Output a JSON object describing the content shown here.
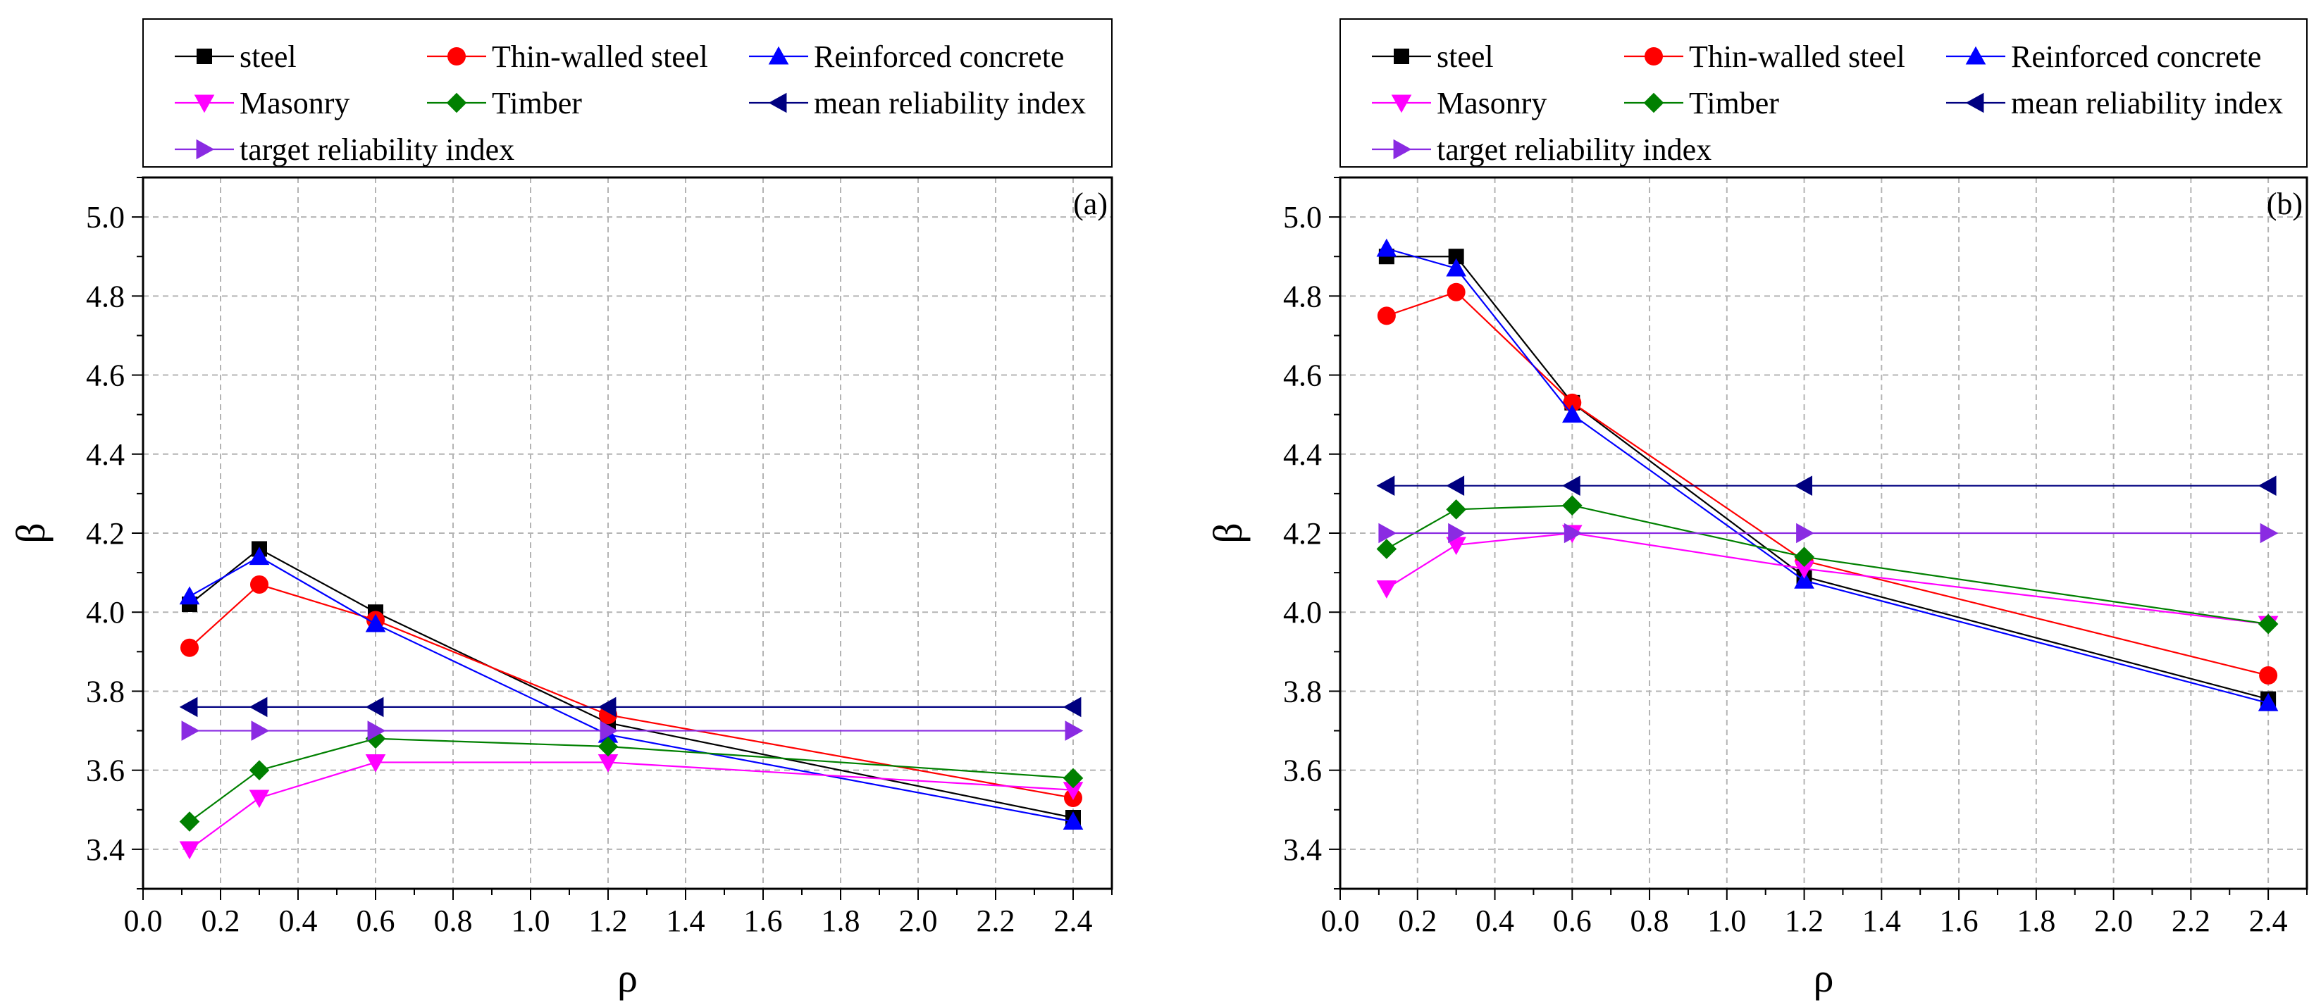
{
  "chart_data": [
    {
      "type": "line",
      "panel_label": "(a)",
      "xlabel": "ρ",
      "ylabel": "β",
      "xlim": [
        0.0,
        2.5
      ],
      "ylim": [
        3.3,
        5.1
      ],
      "xticks": [
        "0.0",
        "0.2",
        "0.4",
        "0.6",
        "0.8",
        "1.0",
        "1.2",
        "1.4",
        "1.6",
        "1.8",
        "2.0",
        "2.2",
        "2.4"
      ],
      "yticks": [
        "3.4",
        "3.6",
        "3.8",
        "4.0",
        "4.2",
        "4.4",
        "4.6",
        "4.8",
        "5.0"
      ],
      "grid": true,
      "legend_position": "top",
      "x": [
        0.12,
        0.3,
        0.6,
        1.2,
        2.4
      ],
      "series": [
        {
          "name": "steel",
          "color": "#000000",
          "marker": "square",
          "values": [
            4.02,
            4.16,
            4.0,
            3.72,
            3.48
          ]
        },
        {
          "name": "Thin-walled steel",
          "color": "#ff0000",
          "marker": "circle",
          "values": [
            3.91,
            4.07,
            3.98,
            3.74,
            3.53
          ]
        },
        {
          "name": "Reinforced concrete",
          "color": "#0000ff",
          "marker": "triangle-up",
          "values": [
            4.04,
            4.14,
            3.97,
            3.69,
            3.47
          ]
        },
        {
          "name": "Masonry",
          "color": "#ff00ff",
          "marker": "triangle-down",
          "values": [
            3.4,
            3.53,
            3.62,
            3.62,
            3.55
          ]
        },
        {
          "name": "Timber",
          "color": "#008000",
          "marker": "diamond",
          "values": [
            3.47,
            3.6,
            3.68,
            3.66,
            3.58
          ]
        },
        {
          "name": "mean reliability index",
          "color": "#000080",
          "marker": "triangle-left",
          "values": [
            3.76,
            3.76,
            3.76,
            3.76,
            3.76
          ]
        },
        {
          "name": "target reliability index",
          "color": "#8a2be2",
          "marker": "triangle-right",
          "values": [
            3.7,
            3.7,
            3.7,
            3.7,
            3.7
          ]
        }
      ]
    },
    {
      "type": "line",
      "panel_label": "(b)",
      "xlabel": "ρ",
      "ylabel": "β",
      "xlim": [
        0.0,
        2.5
      ],
      "ylim": [
        3.3,
        5.1
      ],
      "xticks": [
        "0.0",
        "0.2",
        "0.4",
        "0.6",
        "0.8",
        "1.0",
        "1.2",
        "1.4",
        "1.6",
        "1.8",
        "2.0",
        "2.2",
        "2.4"
      ],
      "yticks": [
        "3.4",
        "3.6",
        "3.8",
        "4.0",
        "4.2",
        "4.4",
        "4.6",
        "4.8",
        "5.0"
      ],
      "grid": true,
      "legend_position": "top",
      "x": [
        0.12,
        0.3,
        0.6,
        1.2,
        2.4
      ],
      "series": [
        {
          "name": "steel",
          "color": "#000000",
          "marker": "square",
          "values": [
            4.9,
            4.9,
            4.53,
            4.09,
            3.78
          ]
        },
        {
          "name": "Thin-walled steel",
          "color": "#ff0000",
          "marker": "circle",
          "values": [
            4.75,
            4.81,
            4.53,
            4.13,
            3.84
          ]
        },
        {
          "name": "Reinforced concrete",
          "color": "#0000ff",
          "marker": "triangle-up",
          "values": [
            4.92,
            4.87,
            4.5,
            4.08,
            3.77
          ]
        },
        {
          "name": "Masonry",
          "color": "#ff00ff",
          "marker": "triangle-down",
          "values": [
            4.06,
            4.17,
            4.2,
            4.11,
            3.97
          ]
        },
        {
          "name": "Timber",
          "color": "#008000",
          "marker": "diamond",
          "values": [
            4.16,
            4.26,
            4.27,
            4.14,
            3.97
          ]
        },
        {
          "name": "mean reliability index",
          "color": "#000080",
          "marker": "triangle-left",
          "values": [
            4.32,
            4.32,
            4.32,
            4.32,
            4.32
          ]
        },
        {
          "name": "target reliability index",
          "color": "#8a2be2",
          "marker": "triangle-right",
          "values": [
            4.2,
            4.2,
            4.2,
            4.2,
            4.2
          ]
        }
      ]
    }
  ]
}
